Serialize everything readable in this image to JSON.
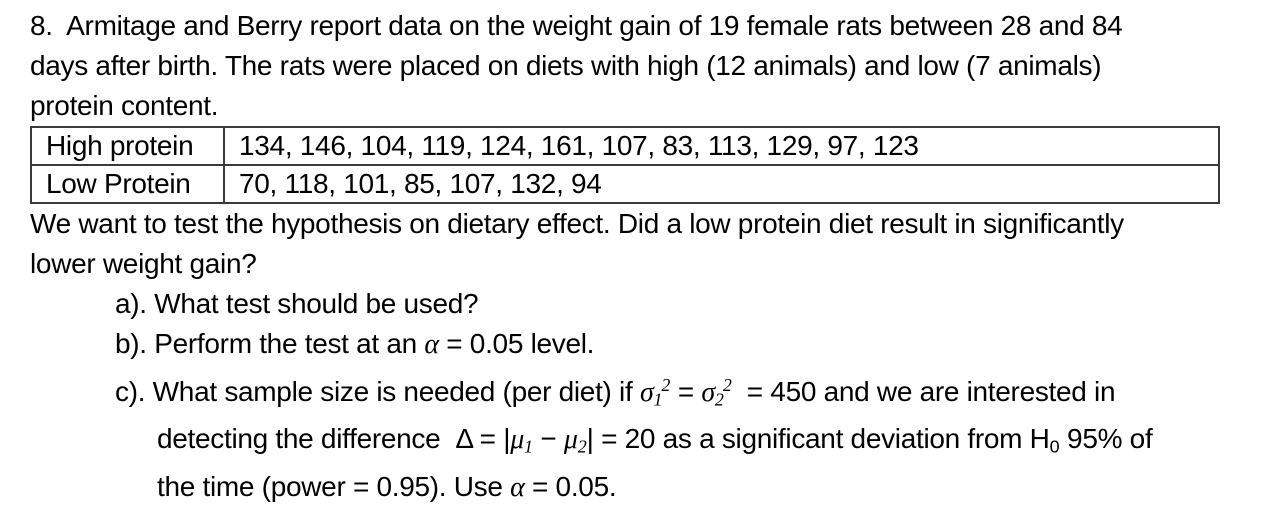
{
  "colors": {
    "background": "#ffffff",
    "text": "#000000",
    "table_border": "#3a3a3a"
  },
  "problem": {
    "number": "8.",
    "lines": [
      "8.  Armitage and Berry report data on the weight gain of 19 female rats between 28 and 84",
      "days after birth. The rats were placed on diets with high (12 animals) and low (7 animals)",
      "protein content."
    ]
  },
  "data_table": {
    "rows": [
      {
        "label": "High protein",
        "values": "134, 146, 104, 119, 124, 161, 107, 83, 113, 129, 97, 123"
      },
      {
        "label": "Low Protein",
        "values": "70, 118, 101, 85, 107, 132, 94"
      }
    ]
  },
  "hypothesis": {
    "lines": [
      "We want to test the hypothesis on dietary effect. Did a low protein diet result in significantly",
      "lower weight gain?"
    ]
  },
  "parts": {
    "a": {
      "line": [
        {
          "t": "a). What test should be used?"
        }
      ]
    },
    "b": {
      "line": [
        {
          "t": "b). Perform the test at an "
        },
        {
          "t": "α",
          "s": "i"
        },
        {
          "t": " = 0.05 level."
        }
      ]
    },
    "c": {
      "line1": [
        {
          "t": "c). What sample size is needed (per diet) if "
        },
        {
          "t": "σ",
          "s": "i"
        },
        {
          "t": "1",
          "s": "subi"
        },
        {
          "t": "2",
          "s": "supi"
        },
        {
          "t": " = "
        },
        {
          "t": "σ",
          "s": "i"
        },
        {
          "t": "2",
          "s": "subi"
        },
        {
          "t": "2",
          "s": "supi"
        },
        {
          "t": "  = 450 and we are interested in"
        }
      ],
      "line2": [
        {
          "t": "detecting the difference  "
        },
        {
          "t": "Δ"
        },
        {
          "t": " = |"
        },
        {
          "t": "μ",
          "s": "i"
        },
        {
          "t": "1",
          "s": "subi"
        },
        {
          "t": " − "
        },
        {
          "t": "μ",
          "s": "i"
        },
        {
          "t": "2",
          "s": "subi"
        },
        {
          "t": "| = 20 as a significant deviation from H"
        },
        {
          "t": "0",
          "s": "sub"
        },
        {
          "t": " 95% of"
        }
      ],
      "line3": [
        {
          "t": "the time (power = 0.95). Use "
        },
        {
          "t": "α",
          "s": "i"
        },
        {
          "t": " = 0.05."
        }
      ]
    }
  }
}
